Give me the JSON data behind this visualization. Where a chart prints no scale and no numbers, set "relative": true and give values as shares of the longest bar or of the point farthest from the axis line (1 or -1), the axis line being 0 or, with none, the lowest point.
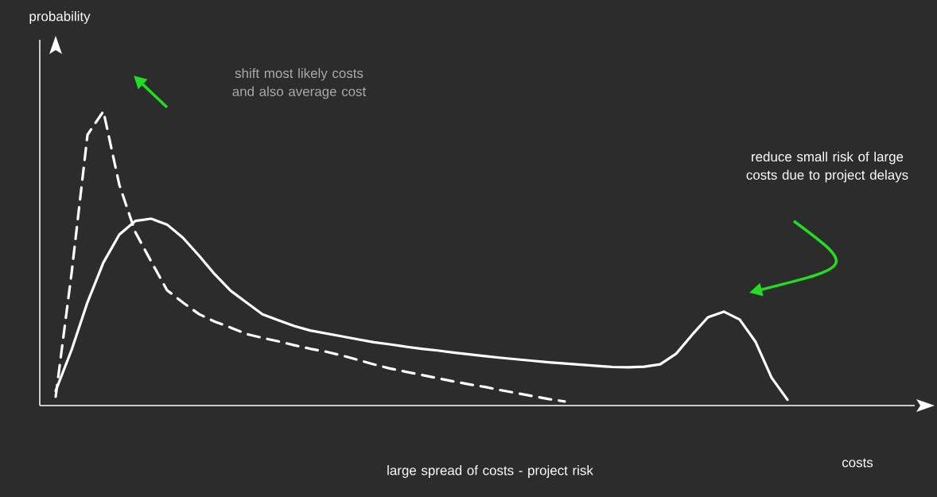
{
  "chart_data": {
    "type": "line",
    "relative": true,
    "annotations": [
      "shift most likely costs and also average cost",
      "reduce small risk of large costs due to project delays",
      "large spread of costs - project risk",
      "probability",
      "costs"
    ],
    "tick_labels": false,
    "marker": "none",
    "categories": [
      null,
      null,
      null,
      null,
      null,
      null,
      null,
      null,
      null,
      null,
      null,
      null,
      null,
      null,
      null,
      null,
      null,
      null,
      null,
      null,
      null,
      null,
      null,
      null,
      null,
      null,
      null,
      null,
      null,
      null,
      null,
      null,
      null,
      null,
      null,
      null,
      null,
      null,
      null,
      null,
      null,
      null,
      null,
      null,
      null,
      null,
      null
    ],
    "series": [
      {
        "color": "#ffffff",
        "line_style": "solid",
        "values": [
          0.05,
          0.189,
          0.351,
          0.486,
          0.581,
          0.627,
          0.635,
          0.615,
          0.57,
          0.51,
          0.446,
          0.39,
          0.35,
          0.31,
          0.29,
          0.27,
          0.255,
          0.245,
          0.235,
          0.225,
          0.215,
          0.208,
          0.2,
          0.193,
          0.187,
          0.18,
          0.174,
          0.168,
          0.162,
          0.157,
          0.152,
          0.147,
          0.143,
          0.139,
          0.135,
          0.131,
          0.13,
          0.132,
          0.14,
          0.176,
          0.24,
          0.3,
          0.319,
          0.292,
          0.216,
          0.095,
          0.02
        ]
      },
      {
        "color": "#ffffff",
        "line_style": "dashed",
        "values": [
          0.03,
          0.45,
          0.92,
          1,
          0.75,
          0.59,
          0.49,
          0.392,
          0.35,
          0.311,
          0.285,
          0.265,
          0.243,
          0.23,
          0.218,
          0.205,
          0.193,
          0.183,
          0.17,
          0.155,
          0.14,
          0.126,
          0.115,
          0.104,
          0.093,
          0.082,
          0.072,
          0.063,
          0.052,
          0.042,
          0.032,
          0.022,
          0.014,
          null,
          null,
          null,
          null,
          null,
          null,
          null,
          null,
          null,
          null,
          null,
          null,
          null,
          null
        ]
      }
    ]
  }
}
